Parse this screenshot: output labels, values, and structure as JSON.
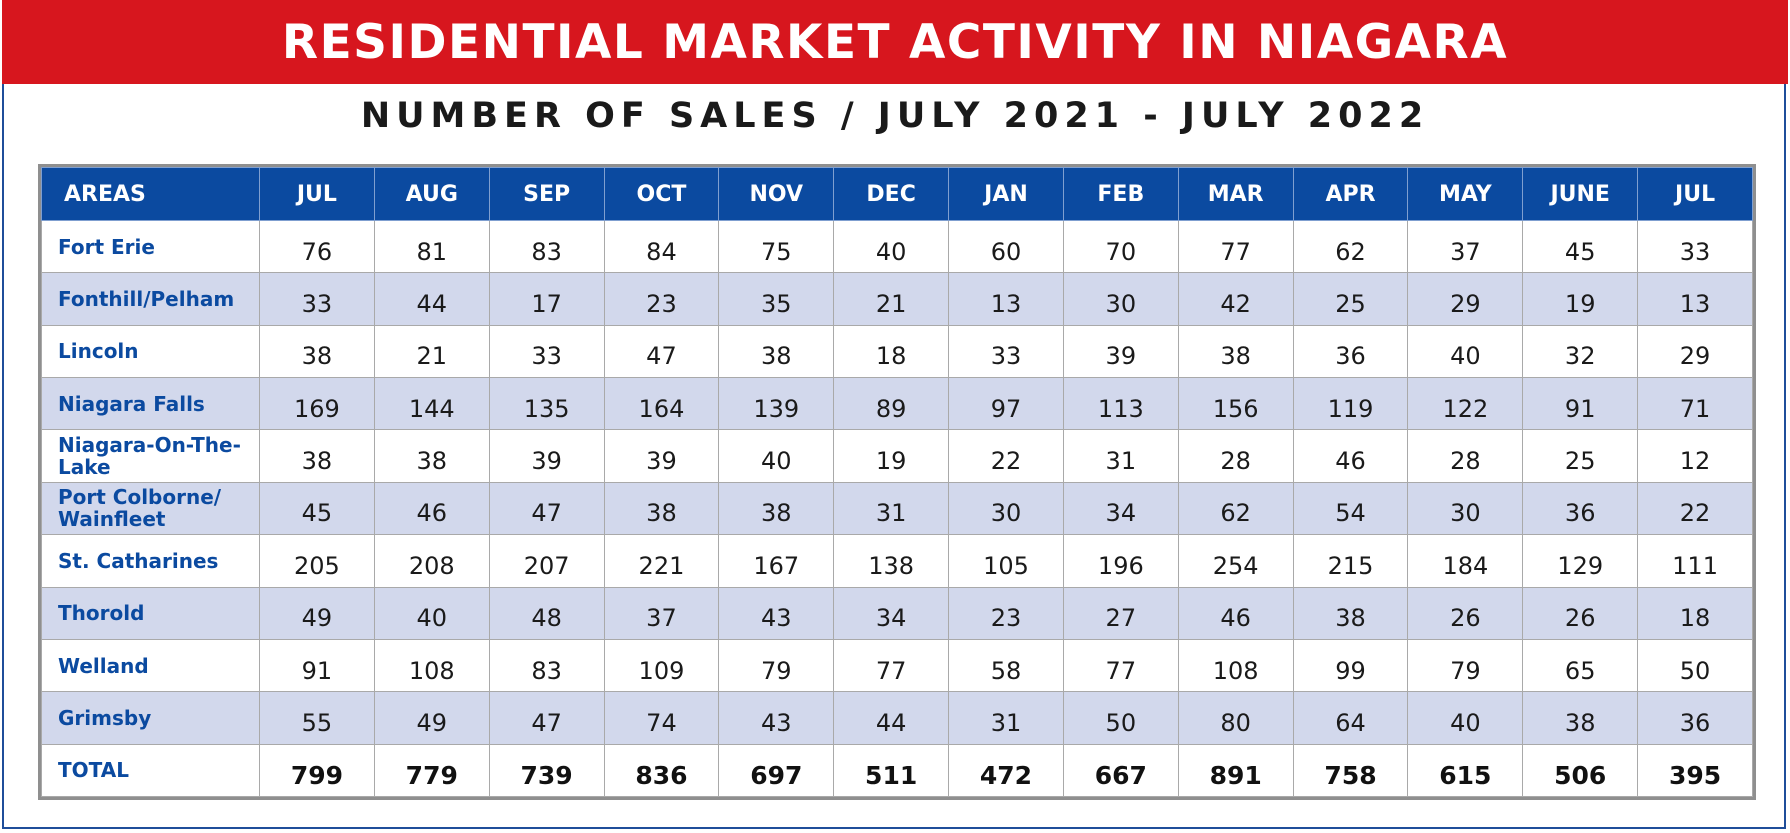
{
  "title": "RESIDENTIAL MARKET ACTIVITY IN NIAGARA",
  "subtitle": "NUMBER OF SALES / JULY 2021 - JULY 2022",
  "colors": {
    "banner": "#d7161e",
    "header": "#0b4aa0",
    "area_text": "#0b4aa0",
    "stripe": "#d2d8ec",
    "frame": "#1f4e9a"
  },
  "table": {
    "area_header": "AREAS",
    "months": [
      "JUL",
      "AUG",
      "SEP",
      "OCT",
      "NOV",
      "DEC",
      "JAN",
      "FEB",
      "MAR",
      "APR",
      "MAY",
      "JUNE",
      "JUL"
    ],
    "rows": [
      {
        "area": "Fort Erie",
        "values": [
          "76",
          "81",
          "83",
          "84",
          "75",
          "40",
          "60",
          "70",
          "77",
          "62",
          "37",
          "45",
          "33"
        ]
      },
      {
        "area": "Fonthill/Pelham",
        "values": [
          "33",
          "44",
          "17",
          "23",
          "35",
          "21",
          "13",
          "30",
          "42",
          "25",
          "29",
          "19",
          "13"
        ]
      },
      {
        "area": "Lincoln",
        "values": [
          "38",
          "21",
          "33",
          "47",
          "38",
          "18",
          "33",
          "39",
          "38",
          "36",
          "40",
          "32",
          "29"
        ]
      },
      {
        "area": "Niagara Falls",
        "values": [
          "169",
          "144",
          "135",
          "164",
          "139",
          "89",
          "97",
          "113",
          "156",
          "119",
          "122",
          "91",
          "71"
        ]
      },
      {
        "area": "Niagara-On-The-Lake",
        "values": [
          "38",
          "38",
          "39",
          "39",
          "40",
          "19",
          "22",
          "31",
          "28",
          "46",
          "28",
          "25",
          "12"
        ]
      },
      {
        "area": "Port Colborne/ Wainfleet",
        "values": [
          "45",
          "46",
          "47",
          "38",
          "38",
          "31",
          "30",
          "34",
          "62",
          "54",
          "30",
          "36",
          "22"
        ]
      },
      {
        "area": "St. Catharines",
        "values": [
          "205",
          "208",
          "207",
          "221",
          "167",
          "138",
          "105",
          "196",
          "254",
          "215",
          "184",
          "129",
          "111"
        ]
      },
      {
        "area": "Thorold",
        "values": [
          "49",
          "40",
          "48",
          "37",
          "43",
          "34",
          "23",
          "27",
          "46",
          "38",
          "26",
          "26",
          "18"
        ]
      },
      {
        "area": "Welland",
        "values": [
          "91",
          "108",
          "83",
          "109",
          "79",
          "77",
          "58",
          "77",
          "108",
          "99",
          "79",
          "65",
          "50"
        ]
      },
      {
        "area": "Grimsby",
        "values": [
          "55",
          "49",
          "47",
          "74",
          "43",
          "44",
          "31",
          "50",
          "80",
          "64",
          "40",
          "38",
          "36"
        ]
      }
    ],
    "total": {
      "area": "TOTAL",
      "values": [
        "799",
        "779",
        "739",
        "836",
        "697",
        "511",
        "472",
        "667",
        "891",
        "758",
        "615",
        "506",
        "395"
      ]
    }
  }
}
